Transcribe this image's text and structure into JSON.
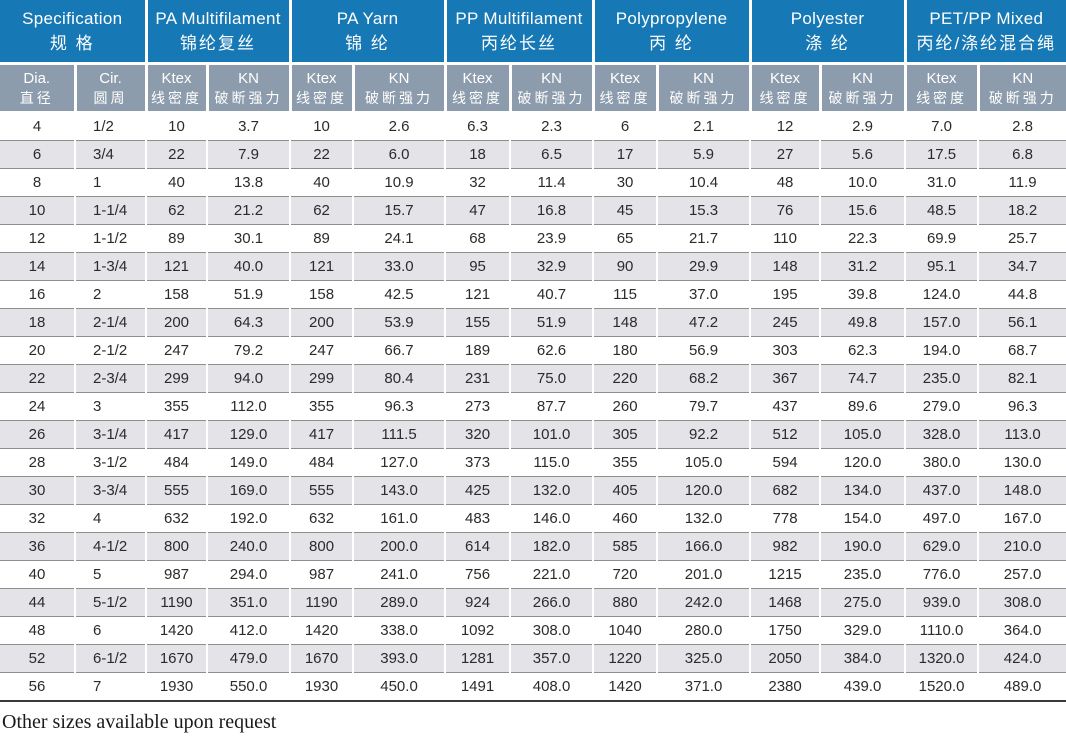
{
  "colors": {
    "header_blue": "#1678B5",
    "subheader_slate": "#8C9CAC",
    "row_alt": "#E3E3E8",
    "grid_line": "#8E8E8E",
    "table_bottom": "#3A3A3A",
    "text_dark": "#2B2B2B"
  },
  "table": {
    "groups": [
      {
        "en": "Specification",
        "zh": "规 格"
      },
      {
        "en": "PA Multifilament",
        "zh": "锦纶复丝"
      },
      {
        "en": "PA Yarn",
        "zh": "锦 纶"
      },
      {
        "en": "PP Multifilament",
        "zh": "丙纶长丝"
      },
      {
        "en": "Polypropylene",
        "zh": "丙 纶"
      },
      {
        "en": "Polyester",
        "zh": "涤 纶"
      },
      {
        "en": "PET/PP Mixed",
        "zh": "丙纶/涤纶混合绳"
      }
    ],
    "subheaders": {
      "dia": {
        "en": "Dia.",
        "zh": "直径"
      },
      "cir": {
        "en": "Cir.",
        "zh": "圆周"
      },
      "ktex": {
        "en": "Ktex",
        "zh": "线密度"
      },
      "kn": {
        "en": "KN",
        "zh": "破断强力"
      }
    },
    "rows": [
      [
        "4",
        "1/2",
        "10",
        "3.7",
        "10",
        "2.6",
        "6.3",
        "2.3",
        "6",
        "2.1",
        "12",
        "2.9",
        "7.0",
        "2.8"
      ],
      [
        "6",
        "3/4",
        "22",
        "7.9",
        "22",
        "6.0",
        "18",
        "6.5",
        "17",
        "5.9",
        "27",
        "5.6",
        "17.5",
        "6.8"
      ],
      [
        "8",
        "1",
        "40",
        "13.8",
        "40",
        "10.9",
        "32",
        "11.4",
        "30",
        "10.4",
        "48",
        "10.0",
        "31.0",
        "11.9"
      ],
      [
        "10",
        "1-1/4",
        "62",
        "21.2",
        "62",
        "15.7",
        "47",
        "16.8",
        "45",
        "15.3",
        "76",
        "15.6",
        "48.5",
        "18.2"
      ],
      [
        "12",
        "1-1/2",
        "89",
        "30.1",
        "89",
        "24.1",
        "68",
        "23.9",
        "65",
        "21.7",
        "110",
        "22.3",
        "69.9",
        "25.7"
      ],
      [
        "14",
        "1-3/4",
        "121",
        "40.0",
        "121",
        "33.0",
        "95",
        "32.9",
        "90",
        "29.9",
        "148",
        "31.2",
        "95.1",
        "34.7"
      ],
      [
        "16",
        "2",
        "158",
        "51.9",
        "158",
        "42.5",
        "121",
        "40.7",
        "115",
        "37.0",
        "195",
        "39.8",
        "124.0",
        "44.8"
      ],
      [
        "18",
        "2-1/4",
        "200",
        "64.3",
        "200",
        "53.9",
        "155",
        "51.9",
        "148",
        "47.2",
        "245",
        "49.8",
        "157.0",
        "56.1"
      ],
      [
        "20",
        "2-1/2",
        "247",
        "79.2",
        "247",
        "66.7",
        "189",
        "62.6",
        "180",
        "56.9",
        "303",
        "62.3",
        "194.0",
        "68.7"
      ],
      [
        "22",
        "2-3/4",
        "299",
        "94.0",
        "299",
        "80.4",
        "231",
        "75.0",
        "220",
        "68.2",
        "367",
        "74.7",
        "235.0",
        "82.1"
      ],
      [
        "24",
        "3",
        "355",
        "112.0",
        "355",
        "96.3",
        "273",
        "87.7",
        "260",
        "79.7",
        "437",
        "89.6",
        "279.0",
        "96.3"
      ],
      [
        "26",
        "3-1/4",
        "417",
        "129.0",
        "417",
        "111.5",
        "320",
        "101.0",
        "305",
        "92.2",
        "512",
        "105.0",
        "328.0",
        "113.0"
      ],
      [
        "28",
        "3-1/2",
        "484",
        "149.0",
        "484",
        "127.0",
        "373",
        "115.0",
        "355",
        "105.0",
        "594",
        "120.0",
        "380.0",
        "130.0"
      ],
      [
        "30",
        "3-3/4",
        "555",
        "169.0",
        "555",
        "143.0",
        "425",
        "132.0",
        "405",
        "120.0",
        "682",
        "134.0",
        "437.0",
        "148.0"
      ],
      [
        "32",
        "4",
        "632",
        "192.0",
        "632",
        "161.0",
        "483",
        "146.0",
        "460",
        "132.0",
        "778",
        "154.0",
        "497.0",
        "167.0"
      ],
      [
        "36",
        "4-1/2",
        "800",
        "240.0",
        "800",
        "200.0",
        "614",
        "182.0",
        "585",
        "166.0",
        "982",
        "190.0",
        "629.0",
        "210.0"
      ],
      [
        "40",
        "5",
        "987",
        "294.0",
        "987",
        "241.0",
        "756",
        "221.0",
        "720",
        "201.0",
        "1215",
        "235.0",
        "776.0",
        "257.0"
      ],
      [
        "44",
        "5-1/2",
        "1190",
        "351.0",
        "1190",
        "289.0",
        "924",
        "266.0",
        "880",
        "242.0",
        "1468",
        "275.0",
        "939.0",
        "308.0"
      ],
      [
        "48",
        "6",
        "1420",
        "412.0",
        "1420",
        "338.0",
        "1092",
        "308.0",
        "1040",
        "280.0",
        "1750",
        "329.0",
        "1110.0",
        "364.0"
      ],
      [
        "52",
        "6-1/2",
        "1670",
        "479.0",
        "1670",
        "393.0",
        "1281",
        "357.0",
        "1220",
        "325.0",
        "2050",
        "384.0",
        "1320.0",
        "424.0"
      ],
      [
        "56",
        "7",
        "1930",
        "550.0",
        "1930",
        "450.0",
        "1491",
        "408.0",
        "1420",
        "371.0",
        "2380",
        "439.0",
        "1520.0",
        "489.0"
      ]
    ]
  },
  "footer": {
    "note": "Other sizes available upon request"
  }
}
